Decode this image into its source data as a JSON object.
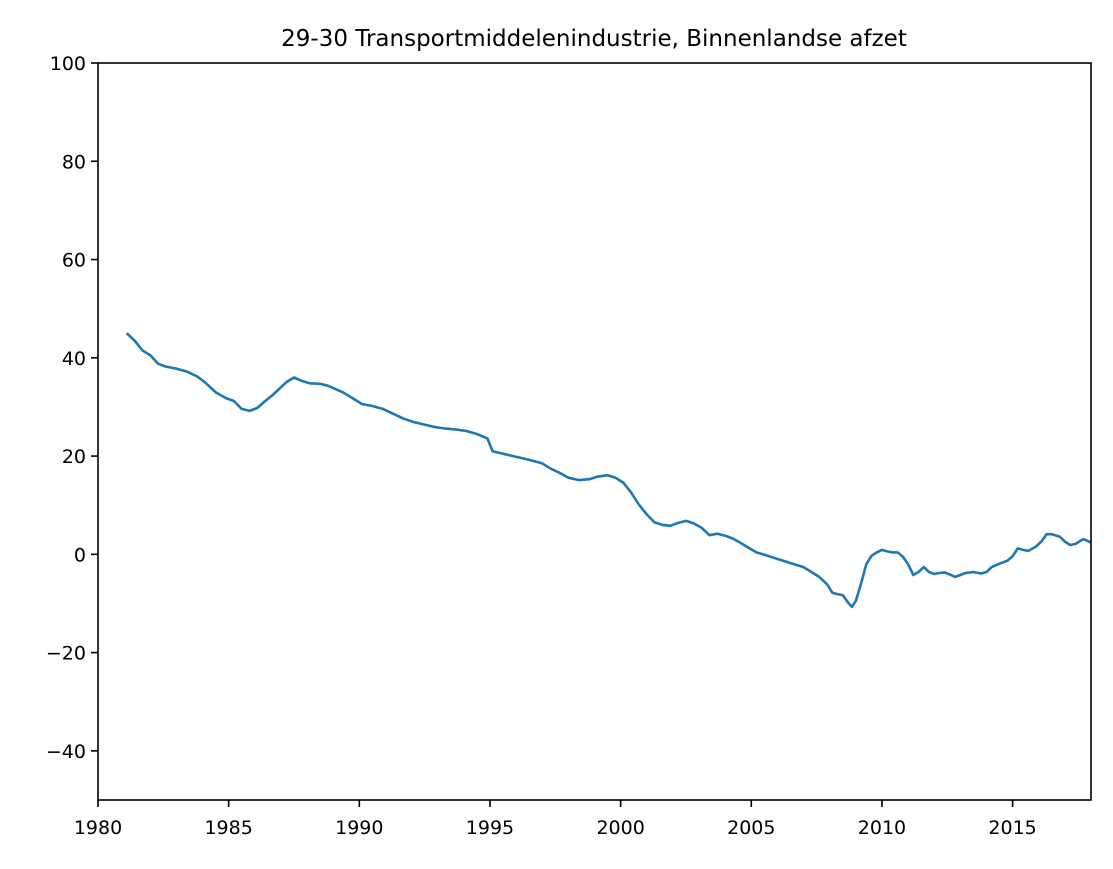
{
  "chart_data": {
    "type": "line",
    "title": "29-30 Transportmiddelenindustrie, Binnenlandse afzet",
    "xlabel": "",
    "ylabel": "",
    "xlim": [
      1980,
      2018
    ],
    "ylim": [
      -50,
      100
    ],
    "x_ticks": [
      1980,
      1985,
      1990,
      1995,
      2000,
      2005,
      2010,
      2015
    ],
    "y_ticks": [
      100,
      80,
      60,
      40,
      20,
      0,
      -20,
      -40
    ],
    "x_tick_labels": [
      "1980",
      "1985",
      "1990",
      "1995",
      "2000",
      "2005",
      "2010",
      "2015"
    ],
    "y_tick_labels": [
      "100",
      "80",
      "60",
      "40",
      "20",
      "0",
      "−20",
      "−40"
    ],
    "grid": false,
    "series": [
      {
        "color": "#1f77b4",
        "x": [
          1981.1,
          1981.4,
          1981.7,
          1982.0,
          1982.3,
          1982.6,
          1983.0,
          1983.4,
          1983.8,
          1984.1,
          1984.5,
          1984.9,
          1985.2,
          1985.5,
          1985.8,
          1986.1,
          1986.4,
          1986.7,
          1987.0,
          1987.2,
          1987.5,
          1987.8,
          1988.1,
          1988.5,
          1988.8,
          1989.1,
          1989.4,
          1989.8,
          1990.1,
          1990.5,
          1990.9,
          1991.3,
          1991.7,
          1992.1,
          1992.5,
          1992.9,
          1993.3,
          1993.7,
          1994.1,
          1994.5,
          1994.9,
          1995.1,
          1995.4,
          1995.8,
          1996.2,
          1996.6,
          1997.0,
          1997.3,
          1997.7,
          1998.0,
          1998.4,
          1998.8,
          1999.1,
          1999.5,
          1999.8,
          2000.1,
          2000.4,
          2000.7,
          2001.0,
          2001.3,
          2001.6,
          2001.9,
          2002.2,
          2002.5,
          2002.8,
          2003.1,
          2003.4,
          2003.7,
          2004.0,
          2004.3,
          2004.6,
          2004.9,
          2005.2,
          2005.5,
          2005.8,
          2006.1,
          2006.4,
          2006.7,
          2007.0,
          2007.3,
          2007.6,
          2007.9,
          2008.1,
          2008.3,
          2008.5,
          2008.7,
          2008.85,
          2009.0,
          2009.2,
          2009.4,
          2009.6,
          2009.8,
          2010.0,
          2010.2,
          2010.4,
          2010.6,
          2010.8,
          2011.0,
          2011.2,
          2011.4,
          2011.6,
          2011.8,
          2012.0,
          2012.2,
          2012.4,
          2012.6,
          2012.8,
          2013.0,
          2013.2,
          2013.5,
          2013.8,
          2014.0,
          2014.2,
          2014.5,
          2014.8,
          2015.0,
          2015.2,
          2015.4,
          2015.6,
          2015.9,
          2016.1,
          2016.3,
          2016.5,
          2016.8,
          2017.0,
          2017.2,
          2017.4,
          2017.7,
          2018.0
        ],
        "y": [
          45.0,
          43.5,
          41.5,
          40.5,
          38.8,
          38.2,
          37.8,
          37.2,
          36.2,
          35.0,
          33.0,
          31.8,
          31.2,
          29.6,
          29.2,
          29.8,
          31.2,
          32.5,
          34.0,
          35.0,
          36.0,
          35.3,
          34.8,
          34.7,
          34.3,
          33.6,
          32.9,
          31.6,
          30.6,
          30.2,
          29.6,
          28.6,
          27.6,
          26.9,
          26.4,
          25.9,
          25.6,
          25.4,
          25.1,
          24.5,
          23.6,
          21.0,
          20.6,
          20.1,
          19.6,
          19.1,
          18.5,
          17.5,
          16.5,
          15.6,
          15.1,
          15.3,
          15.8,
          16.1,
          15.6,
          14.6,
          12.6,
          10.1,
          8.1,
          6.5,
          6.0,
          5.8,
          6.4,
          6.8,
          6.3,
          5.4,
          3.9,
          4.2,
          3.8,
          3.2,
          2.3,
          1.3,
          0.4,
          -0.1,
          -0.6,
          -1.1,
          -1.6,
          -2.1,
          -2.6,
          -3.6,
          -4.6,
          -6.1,
          -7.8,
          -8.1,
          -8.3,
          -9.8,
          -10.7,
          -9.5,
          -6.0,
          -2.0,
          -0.3,
          0.4,
          0.9,
          0.6,
          0.4,
          0.4,
          -0.5,
          -2.0,
          -4.2,
          -3.6,
          -2.6,
          -3.6,
          -4.0,
          -3.8,
          -3.7,
          -4.1,
          -4.6,
          -4.2,
          -3.8,
          -3.6,
          -3.9,
          -3.6,
          -2.6,
          -1.9,
          -1.3,
          -0.4,
          1.2,
          0.9,
          0.7,
          1.6,
          2.6,
          4.1,
          4.1,
          3.6,
          2.6,
          1.9,
          2.1,
          3.1,
          2.4
        ]
      }
    ]
  }
}
